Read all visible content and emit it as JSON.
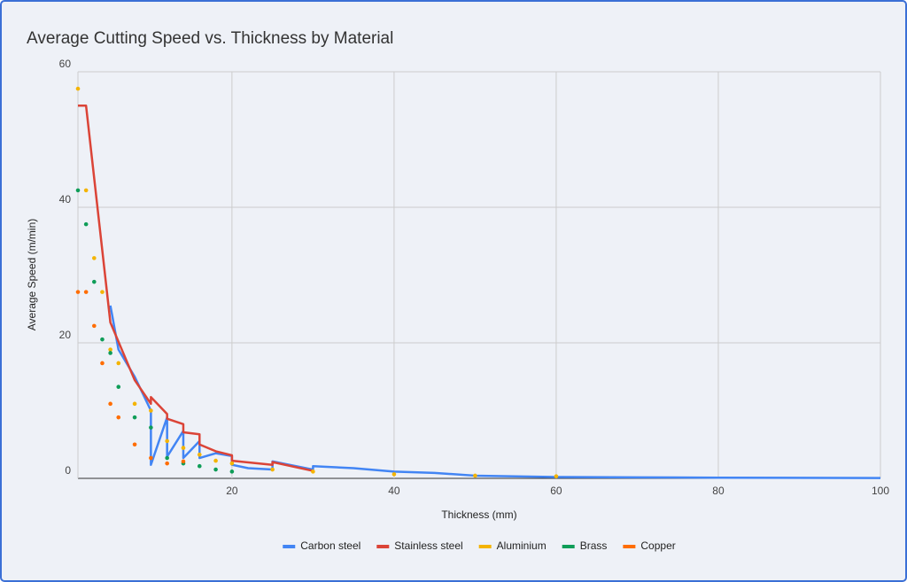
{
  "chart_data": {
    "type": "line",
    "title": "Average Cutting Speed vs. Thickness by Material",
    "x_label": "Thickness (mm)",
    "y_label": "Average Speed (m/min)",
    "xlim": [
      1,
      100
    ],
    "xticks": [
      20,
      40,
      60,
      80,
      100
    ],
    "ylim": [
      0,
      60
    ],
    "yticks": [
      0,
      20,
      40,
      60
    ],
    "grid": true,
    "legend": "bottom",
    "series": [
      {
        "name": "Carbon steel",
        "color": "#4285f4",
        "style": "line",
        "x": [
          5,
          6,
          8,
          10,
          10,
          12,
          12,
          14,
          14,
          16,
          16,
          18,
          20,
          20,
          22,
          25,
          25,
          30,
          30,
          35,
          40,
          45,
          50,
          60,
          70,
          80,
          100
        ],
        "values": [
          25.5,
          19,
          15,
          10,
          2,
          9,
          3.2,
          7,
          3,
          5.5,
          3,
          3.7,
          3.3,
          2,
          1.5,
          1.3,
          2.5,
          1.3,
          1.8,
          1.5,
          1,
          0.8,
          0.4,
          0.2,
          0.15,
          0.1,
          0.05
        ]
      },
      {
        "name": "Stainless steel",
        "color": "#db4437",
        "style": "line",
        "x": [
          1,
          2,
          5,
          8,
          10,
          10,
          12,
          12,
          14,
          14,
          16,
          16,
          18,
          20,
          20,
          25,
          25,
          30
        ],
        "values": [
          55,
          55,
          23,
          14.5,
          11,
          12,
          9.5,
          8.8,
          8,
          6.8,
          6.5,
          5,
          4,
          3.4,
          2.6,
          2,
          2.4,
          1.1
        ]
      },
      {
        "name": "Aluminium",
        "color": "#f4b400",
        "style": "point",
        "x": [
          1,
          2,
          3,
          4,
          5,
          6,
          8,
          10,
          12,
          14,
          16,
          18,
          20,
          25,
          30,
          40,
          50,
          60
        ],
        "values": [
          57.5,
          42.5,
          32.5,
          27.5,
          19,
          17,
          11,
          10,
          5.5,
          4.5,
          3.5,
          2.6,
          2.2,
          1.3,
          1,
          0.6,
          0.4,
          0.3
        ]
      },
      {
        "name": "Brass",
        "color": "#0f9d58",
        "style": "point",
        "x": [
          1,
          2,
          3,
          4,
          5,
          6,
          8,
          10,
          12,
          14,
          16,
          18,
          20
        ],
        "values": [
          42.5,
          37.5,
          29,
          20.5,
          18.5,
          13.5,
          9,
          7.5,
          3,
          2.2,
          1.8,
          1.3,
          1
        ]
      },
      {
        "name": "Copper",
        "color": "#ff6d01",
        "style": "point",
        "x": [
          1,
          2,
          3,
          4,
          5,
          6,
          8,
          10,
          12,
          14
        ],
        "values": [
          27.5,
          27.5,
          22.5,
          17,
          11,
          9,
          5,
          3,
          2.2,
          2.5
        ]
      }
    ]
  }
}
